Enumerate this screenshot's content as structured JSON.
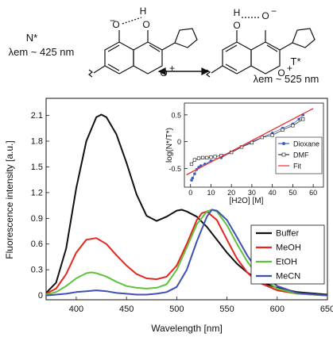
{
  "scheme": {
    "left_state": "N*",
    "left_emission": "λem ~ 425 nm",
    "right_state": "T*",
    "right_emission": "λem ~ 525 nm",
    "atom_O_minus": "O",
    "atom_H": "H",
    "atom_O_plus": "O",
    "charge_minus": "−",
    "charge_plus": "+"
  },
  "chart_data": [
    {
      "type": "line",
      "xlabel": "Wavelength [nm]",
      "ylabel": "Fluorescence intensity [a.u.]",
      "xlim": [
        370,
        650
      ],
      "ylim": [
        -0.05,
        2.3
      ],
      "xticks": [
        400,
        450,
        500,
        550,
        600,
        650
      ],
      "yticks": [
        0,
        0.3,
        0.6,
        0.9,
        1.2,
        1.5,
        1.8,
        2.1
      ],
      "legend_position": "lower-right",
      "series": [
        {
          "name": "Buffer",
          "color": "#111111",
          "x": [
            370,
            380,
            390,
            400,
            410,
            420,
            425,
            430,
            440,
            450,
            460,
            470,
            480,
            490,
            500,
            505,
            510,
            520,
            530,
            540,
            550,
            560,
            570,
            580,
            590,
            600,
            620,
            650
          ],
          "y": [
            0.03,
            0.15,
            0.55,
            1.25,
            1.8,
            2.08,
            2.11,
            2.08,
            1.88,
            1.55,
            1.18,
            0.93,
            0.87,
            0.92,
            0.99,
            1.0,
            0.98,
            0.92,
            0.8,
            0.65,
            0.5,
            0.37,
            0.27,
            0.19,
            0.13,
            0.09,
            0.04,
            0.01
          ]
        },
        {
          "name": "MeOH",
          "color": "#e5261f",
          "x": [
            370,
            380,
            390,
            400,
            410,
            420,
            430,
            440,
            450,
            460,
            470,
            480,
            490,
            500,
            510,
            520,
            525,
            530,
            540,
            550,
            560,
            570,
            580,
            600,
            620,
            650
          ],
          "y": [
            0.02,
            0.08,
            0.25,
            0.5,
            0.65,
            0.67,
            0.6,
            0.47,
            0.35,
            0.25,
            0.2,
            0.19,
            0.22,
            0.35,
            0.6,
            0.88,
            0.96,
            0.98,
            0.88,
            0.65,
            0.43,
            0.27,
            0.16,
            0.06,
            0.02,
            0.0
          ]
        },
        {
          "name": "EtOH",
          "color": "#5fc23a",
          "x": [
            370,
            380,
            390,
            400,
            410,
            415,
            420,
            430,
            440,
            450,
            460,
            470,
            480,
            490,
            500,
            510,
            520,
            530,
            535,
            540,
            550,
            560,
            570,
            580,
            600,
            620,
            650
          ],
          "y": [
            0.01,
            0.04,
            0.11,
            0.2,
            0.26,
            0.27,
            0.26,
            0.22,
            0.16,
            0.11,
            0.09,
            0.08,
            0.09,
            0.13,
            0.3,
            0.56,
            0.83,
            0.98,
            1.0,
            0.98,
            0.82,
            0.6,
            0.4,
            0.24,
            0.08,
            0.02,
            0.0
          ]
        },
        {
          "name": "MeCN",
          "color": "#3f4fb2",
          "x": [
            370,
            380,
            390,
            400,
            410,
            420,
            430,
            440,
            450,
            460,
            470,
            480,
            490,
            500,
            510,
            520,
            530,
            535,
            540,
            550,
            560,
            570,
            580,
            600,
            620,
            650
          ],
          "y": [
            0.0,
            0.01,
            0.02,
            0.04,
            0.05,
            0.06,
            0.05,
            0.03,
            0.02,
            0.01,
            0.01,
            0.02,
            0.04,
            0.1,
            0.3,
            0.63,
            0.92,
            1.0,
            0.99,
            0.88,
            0.68,
            0.47,
            0.3,
            0.11,
            0.03,
            0.0
          ]
        }
      ]
    },
    {
      "type": "scatter",
      "xlabel": "[H2O] [M]",
      "ylabel": "log(N*/T*)",
      "xlim": [
        -3,
        65
      ],
      "ylim": [
        -0.85,
        0.72
      ],
      "xticks": [
        0,
        10,
        20,
        30,
        40,
        50,
        60
      ],
      "yticks": [
        -0.5,
        0.0,
        0.5
      ],
      "legend_position": "lower-right",
      "series": [
        {
          "name": "Dioxane",
          "color": "#3a5fc8",
          "marker": "circle",
          "x": [
            0.5,
            1,
            2,
            3,
            4,
            5,
            7,
            10,
            15,
            20,
            25,
            30,
            35,
            40,
            45,
            50,
            53,
            55
          ],
          "y": [
            -0.72,
            -0.68,
            -0.6,
            -0.52,
            -0.48,
            -0.45,
            -0.42,
            -0.36,
            -0.3,
            -0.2,
            -0.1,
            0.0,
            0.08,
            0.16,
            0.25,
            0.33,
            0.42,
            0.5
          ]
        },
        {
          "name": "DMF",
          "color": "#333333",
          "marker": "square",
          "x": [
            0.5,
            2,
            4,
            6,
            8,
            10,
            12,
            15,
            20,
            25,
            30,
            35,
            40,
            45,
            50,
            55
          ],
          "y": [
            -0.42,
            -0.34,
            -0.31,
            -0.3,
            -0.3,
            -0.29,
            -0.28,
            -0.26,
            -0.2,
            -0.1,
            -0.02,
            0.08,
            0.12,
            0.22,
            0.3,
            0.42
          ]
        },
        {
          "name": "Fit",
          "color": "#e8302a",
          "marker": "line",
          "x": [
            -2,
            60
          ],
          "y": [
            -0.62,
            0.62
          ]
        }
      ]
    }
  ]
}
